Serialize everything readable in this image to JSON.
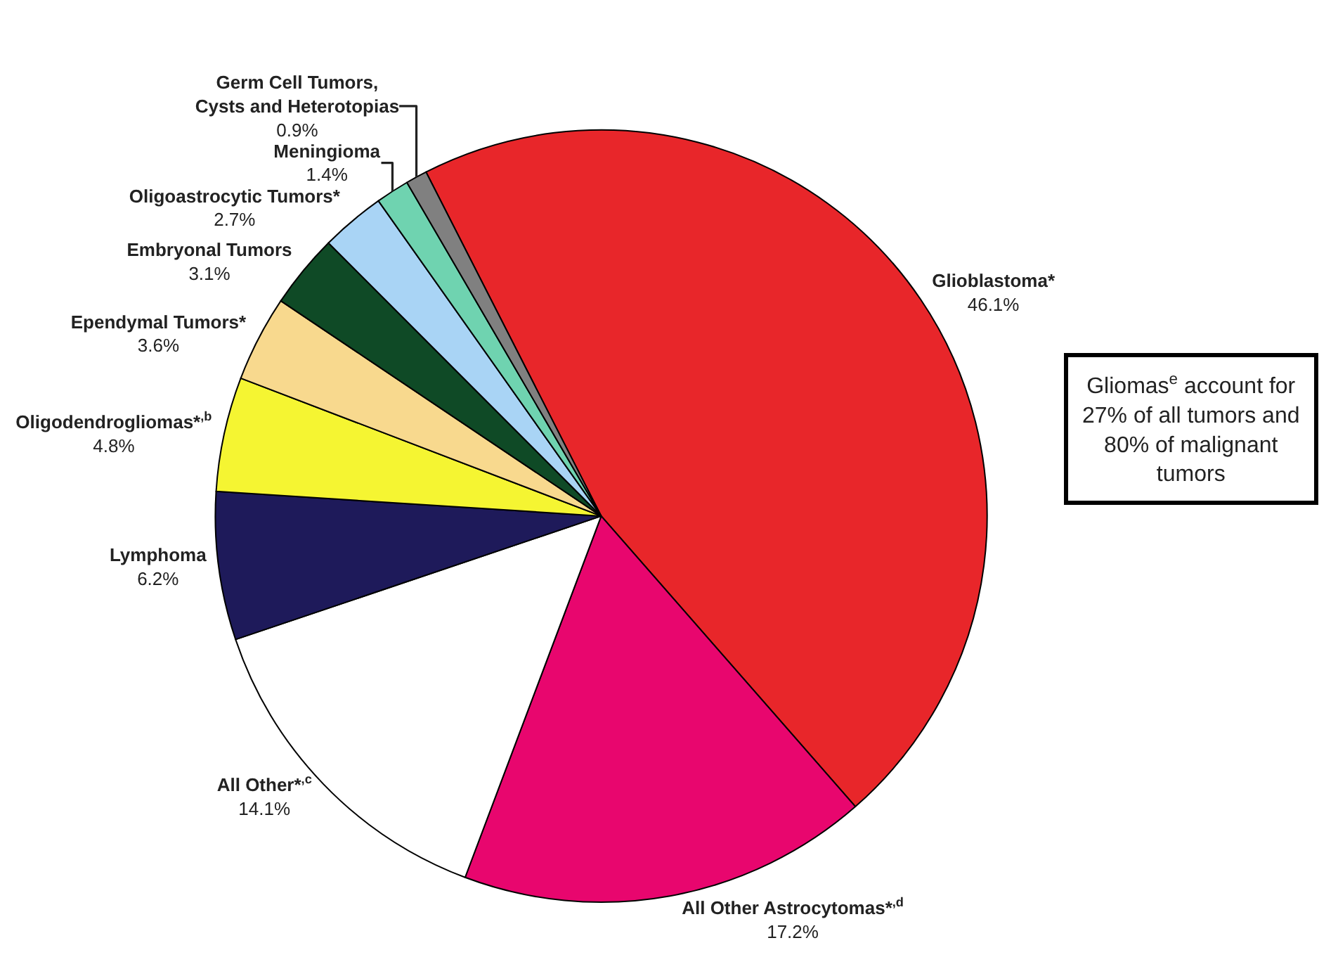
{
  "chart_data": {
    "type": "pie",
    "categories": [
      "Glioblastoma*",
      "All Other Astrocytomas*$^{,d}$",
      "All Other*$^{,c}$",
      "Lymphoma",
      "Oligodendrogliomas*$^{,b}$",
      "Ependymal Tumors*",
      "Embryonal Tumors",
      "Oligoastrocytic Tumors*",
      "Meningioma",
      "Germ Cell Tumors,\nCysts and Heterotopias"
    ],
    "values": [
      46.1,
      17.2,
      14.1,
      6.2,
      4.8,
      3.6,
      3.1,
      2.7,
      1.4,
      0.9
    ],
    "value_labels": [
      "46.1%",
      "17.2%",
      "14.1%",
      "6.2%",
      "4.8%",
      "3.6%",
      "3.1%",
      "2.7%",
      "1.4%",
      "0.9%"
    ],
    "colors": [
      "#e8262a",
      "#e8066e",
      "#ffffff",
      "#1e1a5a",
      "#f5f532",
      "#f8d98e",
      "#0f4a26",
      "#a9d4f5",
      "#6fd3b0",
      "#808080"
    ],
    "annotations": [
      "Gliomas$^{e}$ account for\n27% of all tumors and\n80% of malignant\ntumors"
    ],
    "legend": false
  }
}
